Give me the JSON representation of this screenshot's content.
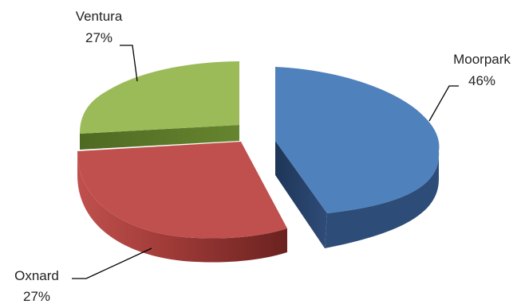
{
  "chart_data": {
    "type": "pie",
    "style": "3d-exploded",
    "title": "",
    "slices": [
      {
        "label": "Moorpark",
        "value": 46,
        "pct_label": "46%",
        "color": "#4F81BD",
        "side": "#2B4670"
      },
      {
        "label": "Oxnard",
        "value": 27,
        "pct_label": "27%",
        "color": "#C0504D",
        "side": "#8A2F2C"
      },
      {
        "label": "Ventura",
        "value": 27,
        "pct_label": "27%",
        "color": "#9BBB59",
        "side": "#5C7A2A"
      }
    ]
  }
}
